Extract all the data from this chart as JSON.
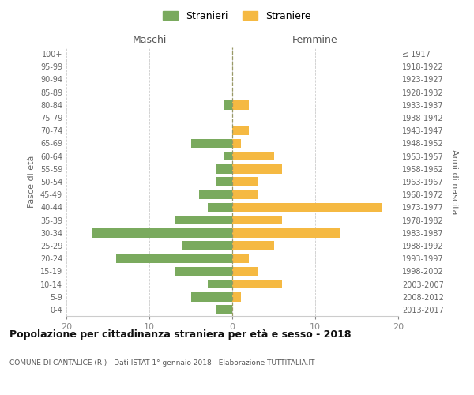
{
  "age_groups": [
    "100+",
    "95-99",
    "90-94",
    "85-89",
    "80-84",
    "75-79",
    "70-74",
    "65-69",
    "60-64",
    "55-59",
    "50-54",
    "45-49",
    "40-44",
    "35-39",
    "30-34",
    "25-29",
    "20-24",
    "15-19",
    "10-14",
    "5-9",
    "0-4"
  ],
  "birth_years": [
    "≤ 1917",
    "1918-1922",
    "1923-1927",
    "1928-1932",
    "1933-1937",
    "1938-1942",
    "1943-1947",
    "1948-1952",
    "1953-1957",
    "1958-1962",
    "1963-1967",
    "1968-1972",
    "1973-1977",
    "1978-1982",
    "1983-1987",
    "1988-1992",
    "1993-1997",
    "1998-2002",
    "2003-2007",
    "2008-2012",
    "2013-2017"
  ],
  "maschi": [
    0,
    0,
    0,
    0,
    1,
    0,
    0,
    5,
    1,
    2,
    2,
    4,
    3,
    7,
    17,
    6,
    14,
    7,
    3,
    5,
    2
  ],
  "femmine": [
    0,
    0,
    0,
    0,
    2,
    0,
    2,
    1,
    5,
    6,
    3,
    3,
    18,
    6,
    13,
    5,
    2,
    3,
    6,
    1,
    0
  ],
  "color_maschi": "#7aaa5e",
  "color_femmine": "#f5b942",
  "title": "Popolazione per cittadinanza straniera per età e sesso - 2018",
  "subtitle": "COMUNE DI CANTALICE (RI) - Dati ISTAT 1° gennaio 2018 - Elaborazione TUTTITALIA.IT",
  "ylabel_left": "Fasce di età",
  "ylabel_right": "Anni di nascita",
  "xlabel_left": "Maschi",
  "xlabel_right": "Femmine",
  "legend_maschi": "Stranieri",
  "legend_femmine": "Straniere",
  "xlim": 20,
  "background_color": "#ffffff",
  "grid_color": "#cccccc"
}
